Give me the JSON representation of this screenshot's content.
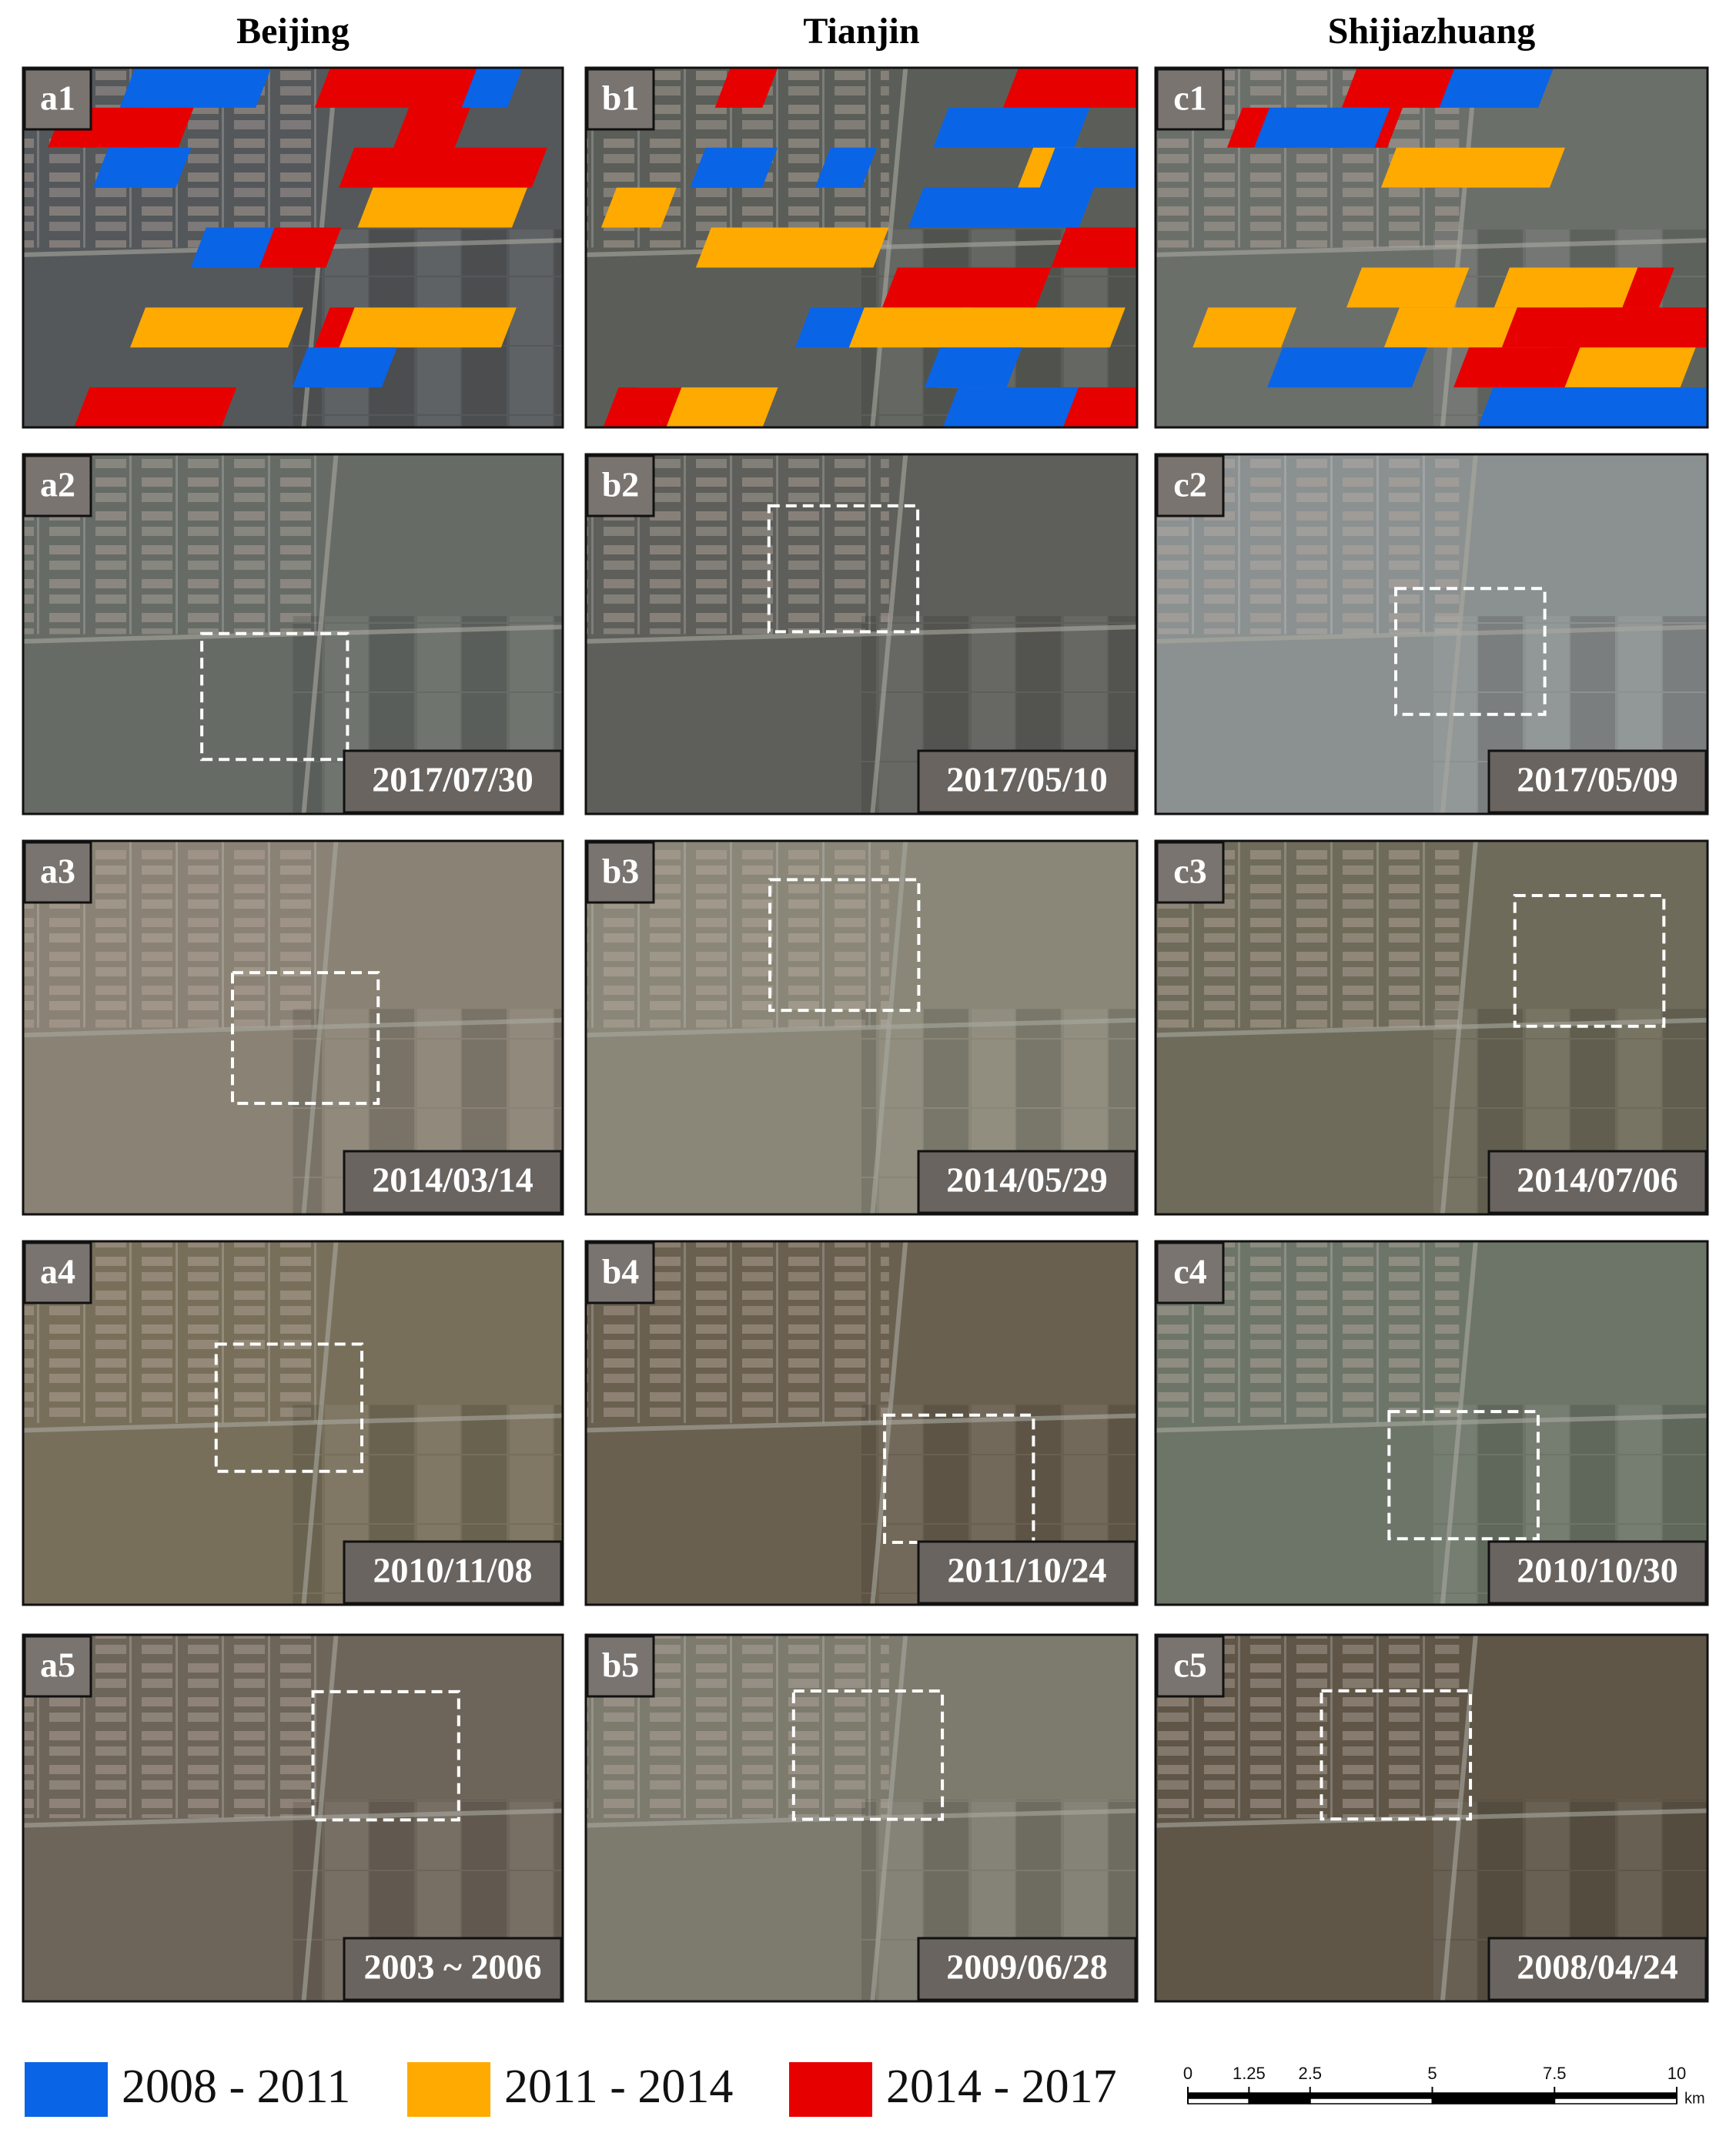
{
  "columns": [
    "Beijing",
    "Tianjin",
    "Shijiazhuang"
  ],
  "panels": [
    [
      {
        "label": "a1"
      },
      {
        "label": "a2",
        "date": "2017/07/30"
      },
      {
        "label": "a3",
        "date": "2014/03/14"
      },
      {
        "label": "a4",
        "date": "2010/11/08"
      },
      {
        "label": "a5",
        "date": "2003 ~ 2006"
      }
    ],
    [
      {
        "label": "b1"
      },
      {
        "label": "b2",
        "date": "2017/05/10"
      },
      {
        "label": "b3",
        "date": "2014/05/29"
      },
      {
        "label": "b4",
        "date": "2011/10/24"
      },
      {
        "label": "b5",
        "date": "2009/06/28"
      }
    ],
    [
      {
        "label": "c1"
      },
      {
        "label": "c2",
        "date": "2017/05/09"
      },
      {
        "label": "c3",
        "date": "2014/07/06"
      },
      {
        "label": "c4",
        "date": "2010/10/30"
      },
      {
        "label": "c5",
        "date": "2008/04/24"
      }
    ]
  ],
  "legend": [
    {
      "label": "2008 - 2011",
      "color": "#0a64e6"
    },
    {
      "label": "2011 - 2014",
      "color": "#ffaa00"
    },
    {
      "label": "2014 - 2017",
      "color": "#e60000"
    }
  ],
  "scale_bar": {
    "ticks": [
      0,
      1.25,
      2.5,
      5,
      7.5,
      10
    ],
    "unit": "km"
  }
}
